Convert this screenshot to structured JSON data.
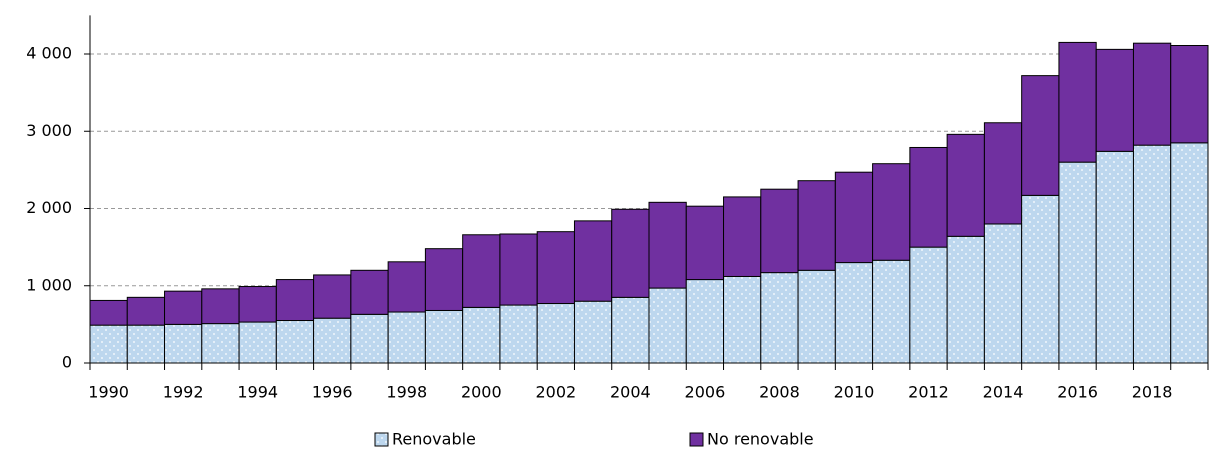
{
  "chart_data": {
    "type": "stacked_bar",
    "categories": [
      "1990",
      null,
      "1992",
      null,
      "1994",
      null,
      "1996",
      null,
      "1998",
      null,
      "2000",
      null,
      "2002",
      null,
      "2004",
      null,
      "2006",
      null,
      "2008",
      null,
      "2010",
      null,
      "2012",
      null,
      "2014",
      null,
      "2016",
      null,
      "2018",
      null
    ],
    "series": [
      {
        "name": "Renovable",
        "color": "#bdd7ee",
        "values": [
          490,
          490,
          500,
          510,
          530,
          550,
          580,
          630,
          660,
          680,
          720,
          750,
          770,
          800,
          850,
          970,
          1080,
          1120,
          1170,
          1200,
          1300,
          1330,
          1500,
          1640,
          1800,
          2170,
          2600,
          2740,
          2820,
          2850
        ]
      },
      {
        "name": "No renovable",
        "color": "#7030a0",
        "values": [
          320,
          360,
          430,
          450,
          460,
          530,
          560,
          570,
          650,
          800,
          940,
          920,
          930,
          1040,
          1140,
          1110,
          950,
          1030,
          1080,
          1160,
          1170,
          1250,
          1290,
          1320,
          1310,
          1550,
          1550,
          1320,
          1320,
          1260
        ]
      }
    ],
    "ylim": [
      0,
      4500
    ],
    "yticks": [
      0,
      {
        "value": 1000,
        "label": "1 000"
      },
      {
        "value": 2000,
        "label": "2 000"
      },
      {
        "value": 3000,
        "label": "3 000"
      },
      {
        "value": 4000,
        "label": "4 000"
      }
    ],
    "grid": true,
    "legend": "bottom"
  }
}
